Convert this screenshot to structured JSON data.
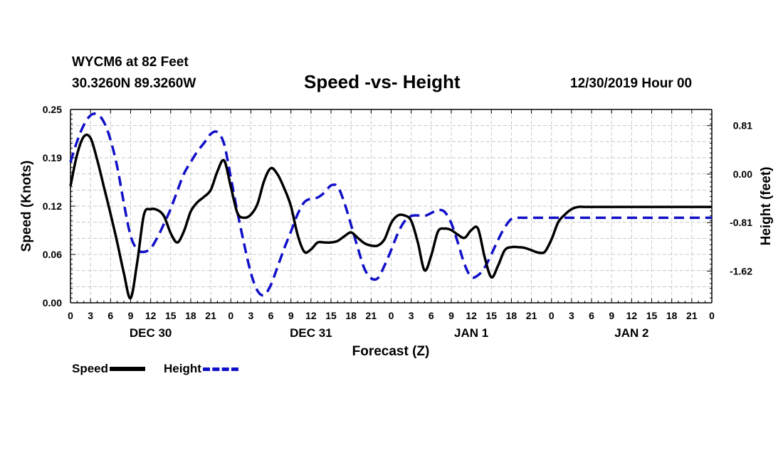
{
  "header": {
    "station": "WYCM6 at 82 Feet",
    "coords": "30.3260N 89.3260W",
    "title": "Speed -vs- Height",
    "date": "12/30/2019 Hour 00"
  },
  "legend": {
    "speed_label": "Speed",
    "height_label": "Height"
  },
  "chart_data": {
    "type": "line",
    "title": "Speed -vs- Height",
    "xlabel": "Forecast (Z)",
    "ylabel_left": "Speed (Knots)",
    "ylabel_right": "Height (feet)",
    "xlim": [
      0,
      96
    ],
    "ylim_left": [
      0.0,
      0.25
    ],
    "ylim_right": [
      -2.15,
      1.08
    ],
    "grid": true,
    "legend_position": "bottom-left",
    "y_ticks_left": [
      "0.00",
      "0.06",
      "0.12",
      "0.19",
      "0.25"
    ],
    "y_ticks_left_values": [
      0.0,
      0.0625,
      0.125,
      0.1875,
      0.25
    ],
    "y_ticks_right": [
      "0.81",
      "0.00",
      "-0.81",
      "-1.62"
    ],
    "y_ticks_right_values": [
      0.81,
      0.0,
      -0.81,
      -1.62
    ],
    "x_ticks": [
      "0",
      "3",
      "6",
      "9",
      "12",
      "15",
      "18",
      "21",
      "0",
      "3",
      "6",
      "9",
      "12",
      "15",
      "18",
      "21",
      "0",
      "3",
      "6",
      "9",
      "12",
      "15",
      "18",
      "21",
      "0",
      "3",
      "6",
      "9",
      "12",
      "15",
      "18",
      "21",
      "0"
    ],
    "x_tick_hours": [
      0,
      3,
      6,
      9,
      12,
      15,
      18,
      21,
      24,
      27,
      30,
      33,
      36,
      39,
      42,
      45,
      48,
      51,
      54,
      57,
      60,
      63,
      66,
      69,
      72,
      75,
      78,
      81,
      84,
      87,
      90,
      93,
      96
    ],
    "day_labels": [
      {
        "label": "DEC 30",
        "hour": 12
      },
      {
        "label": "DEC 31",
        "hour": 36
      },
      {
        "label": "JAN 1",
        "hour": 60
      },
      {
        "label": "JAN 2",
        "hour": 84
      }
    ],
    "series": [
      {
        "name": "Speed",
        "axis": "left",
        "color": "#000000",
        "dashed": false,
        "x": [
          0,
          1,
          2,
          3,
          4,
          5,
          6,
          7,
          8,
          9,
          10,
          11,
          12,
          13,
          14,
          15,
          16,
          17,
          18,
          19,
          20,
          21,
          22,
          23,
          24,
          25,
          26,
          27,
          28,
          29,
          30,
          31,
          32,
          33,
          34,
          35,
          36,
          37,
          38,
          39,
          40,
          41,
          42,
          43,
          44,
          45,
          46,
          47,
          48,
          49,
          50,
          51,
          52,
          53,
          54,
          55,
          56,
          57,
          58,
          59,
          60,
          61,
          62,
          63,
          64,
          65,
          66,
          67,
          68,
          69,
          70,
          71,
          72,
          73,
          74,
          75,
          76,
          77,
          78,
          79,
          80,
          81,
          82,
          83,
          84,
          85,
          86,
          87,
          88,
          89,
          90,
          91,
          92,
          93,
          94,
          95,
          96
        ],
        "values": [
          0.151,
          0.192,
          0.215,
          0.213,
          0.185,
          0.15,
          0.115,
          0.078,
          0.038,
          0.006,
          0.053,
          0.114,
          0.121,
          0.12,
          0.112,
          0.09,
          0.078,
          0.093,
          0.118,
          0.13,
          0.137,
          0.146,
          0.17,
          0.184,
          0.15,
          0.116,
          0.11,
          0.114,
          0.128,
          0.158,
          0.174,
          0.166,
          0.148,
          0.125,
          0.088,
          0.066,
          0.069,
          0.078,
          0.078,
          0.078,
          0.08,
          0.086,
          0.091,
          0.084,
          0.077,
          0.074,
          0.074,
          0.082,
          0.103,
          0.113,
          0.113,
          0.106,
          0.078,
          0.042,
          0.061,
          0.092,
          0.096,
          0.094,
          0.088,
          0.084,
          0.094,
          0.096,
          0.059,
          0.033,
          0.048,
          0.068,
          0.072,
          0.072,
          0.071,
          0.068,
          0.065,
          0.066,
          0.082,
          0.104,
          0.114,
          0.121,
          0.124,
          0.124,
          0.124,
          0.124,
          0.124,
          0.124,
          0.124,
          0.124,
          0.124,
          0.124,
          0.124,
          0.124,
          0.124,
          0.124,
          0.124,
          0.124,
          0.124,
          0.124,
          0.124,
          0.124,
          0.124
        ]
      },
      {
        "name": "Height",
        "axis": "right",
        "color": "#1010c8",
        "dashed": true,
        "x": [
          0,
          1,
          2,
          3,
          4,
          5,
          6,
          7,
          8,
          9,
          10,
          11,
          12,
          13,
          14,
          15,
          16,
          17,
          18,
          19,
          20,
          21,
          22,
          23,
          24,
          25,
          26,
          27,
          28,
          29,
          30,
          31,
          32,
          33,
          34,
          35,
          36,
          37,
          38,
          39,
          40,
          41,
          42,
          43,
          44,
          45,
          46,
          47,
          48,
          49,
          50,
          51,
          52,
          53,
          54,
          55,
          56,
          57,
          58,
          59,
          60,
          61,
          62,
          63,
          64,
          65,
          66,
          67,
          68,
          69,
          70,
          71,
          72,
          73,
          74,
          75,
          76,
          77,
          78,
          79,
          80,
          81,
          82,
          83,
          84,
          85,
          86,
          87,
          88,
          89,
          90,
          91,
          92,
          93,
          94,
          95,
          96
        ],
        "values": [
          0.2,
          0.55,
          0.82,
          0.98,
          1.0,
          0.87,
          0.57,
          0.12,
          -0.49,
          -1.03,
          -1.26,
          -1.3,
          -1.24,
          -1.06,
          -0.83,
          -0.58,
          -0.28,
          0.01,
          0.2,
          0.38,
          0.52,
          0.67,
          0.7,
          0.5,
          -0.06,
          -0.64,
          -1.17,
          -1.65,
          -1.95,
          -2.02,
          -1.85,
          -1.55,
          -1.24,
          -0.96,
          -0.67,
          -0.47,
          -0.41,
          -0.39,
          -0.31,
          -0.19,
          -0.21,
          -0.48,
          -0.85,
          -1.23,
          -1.58,
          -1.74,
          -1.74,
          -1.53,
          -1.27,
          -0.99,
          -0.79,
          -0.7,
          -0.69,
          -0.7,
          -0.65,
          -0.6,
          -0.63,
          -0.82,
          -1.15,
          -1.51,
          -1.72,
          -1.69,
          -1.56,
          -1.34,
          -1.1,
          -0.89,
          -0.75,
          -0.73,
          -0.73,
          -0.73,
          -0.73,
          -0.73,
          -0.73,
          -0.73,
          -0.73,
          -0.73,
          -0.73,
          -0.73,
          -0.73,
          -0.73,
          -0.73,
          -0.73,
          -0.73,
          -0.73,
          -0.73,
          -0.73,
          -0.73,
          -0.73,
          -0.73,
          -0.73,
          -0.73,
          -0.73,
          -0.73,
          -0.73,
          -0.73,
          -0.73,
          -0.73
        ]
      }
    ]
  }
}
